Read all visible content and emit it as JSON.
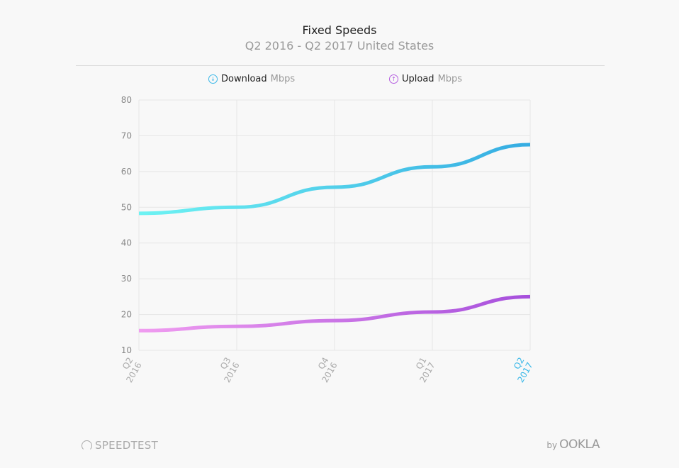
{
  "header": {
    "title": "Fixed Speeds",
    "subtitle": "Q2 2016 - Q2 2017 United States"
  },
  "legend": [
    {
      "label": "Download",
      "unit": "Mbps",
      "icon": "arrow-down-circle-icon",
      "color": "#3ab8e8"
    },
    {
      "label": "Upload",
      "unit": "Mbps",
      "icon": "arrow-up-circle-icon",
      "color": "#b55ee0"
    }
  ],
  "footer": {
    "brand": "SPEEDTEST",
    "by": "by",
    "company": "OOKLA"
  },
  "chart_data": {
    "type": "line",
    "title": "Fixed Speeds",
    "subtitle": "Q2 2016 - Q2 2017 United States",
    "categories": [
      [
        "Q2",
        "2016"
      ],
      [
        "Q3",
        "2016"
      ],
      [
        "Q4",
        "2016"
      ],
      [
        "Q1",
        "2017"
      ],
      [
        "Q2",
        "2017"
      ]
    ],
    "highlight_category_color": "#3ab8e8",
    "yticks": [
      10,
      20,
      30,
      40,
      50,
      60,
      70,
      80
    ],
    "ylim": [
      10,
      80
    ],
    "grid": true,
    "legend_position": "top",
    "series": [
      {
        "name": "Download",
        "values": [
          48.3,
          50.0,
          55.6,
          61.3,
          67.5
        ],
        "color_start": "#6ef3f3",
        "color_end": "#35ace2"
      },
      {
        "name": "Upload",
        "values": [
          15.5,
          16.7,
          18.3,
          20.7,
          25.0
        ],
        "color_start": "#f09cf0",
        "color_end": "#a64fdc"
      }
    ]
  }
}
